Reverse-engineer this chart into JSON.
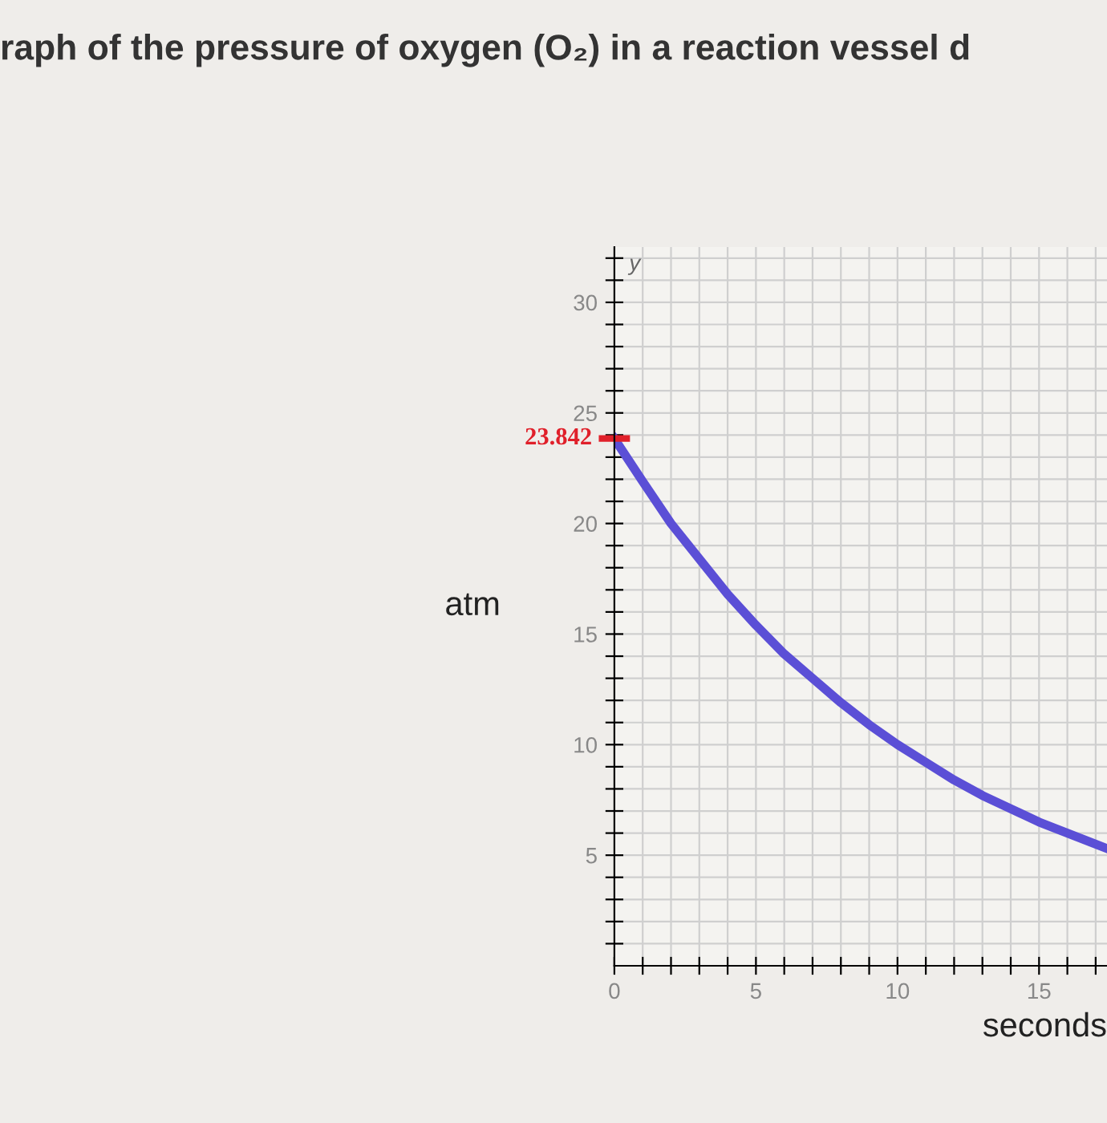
{
  "chart_data": {
    "type": "line",
    "title": "raph of the pressure of oxygen (O₂) in a reaction vessel d",
    "xlabel": "seconds",
    "ylabel": "atm",
    "annotations": [
      "y",
      {
        "text": "23.842",
        "x": 0,
        "y": 23.842
      }
    ],
    "x": [
      0,
      1,
      2,
      3,
      4,
      5,
      6,
      7,
      8,
      9,
      10,
      11,
      12,
      13,
      14,
      15,
      16,
      17,
      17.4
    ],
    "series": [
      {
        "color": "#5b4fd6",
        "values": [
          23.84,
          21.9,
          20.0,
          18.4,
          16.8,
          15.4,
          14.1,
          13.0,
          11.9,
          10.9,
          10.0,
          9.2,
          8.4,
          7.7,
          7.1,
          6.5,
          6.0,
          5.5,
          5.3
        ]
      }
    ],
    "xlim": [
      0,
      17.4
    ],
    "ylim": [
      0,
      32.5
    ],
    "xticks": [
      0,
      {
        "value": 1,
        "label": null
      },
      {
        "value": 2,
        "label": null
      },
      {
        "value": 3,
        "label": null
      },
      {
        "value": 4,
        "label": null
      },
      5,
      {
        "value": 6,
        "label": null
      },
      {
        "value": 7,
        "label": null
      },
      {
        "value": 8,
        "label": null
      },
      {
        "value": 9,
        "label": null
      },
      10,
      {
        "value": 11,
        "label": null
      },
      {
        "value": 12,
        "label": null
      },
      {
        "value": 13,
        "label": null
      },
      {
        "value": 14,
        "label": null
      },
      15,
      {
        "value": 16,
        "label": null
      },
      {
        "value": 17,
        "label": null
      }
    ],
    "yticks": [
      {
        "value": 1,
        "label": null
      },
      {
        "value": 2,
        "label": null
      },
      {
        "value": 3,
        "label": null
      },
      {
        "value": 4,
        "label": null
      },
      5,
      {
        "value": 6,
        "label": null
      },
      {
        "value": 7,
        "label": null
      },
      {
        "value": 8,
        "label": null
      },
      {
        "value": 9,
        "label": null
      },
      10,
      {
        "value": 11,
        "label": null
      },
      {
        "value": 12,
        "label": null
      },
      {
        "value": 13,
        "label": null
      },
      {
        "value": 14,
        "label": null
      },
      15,
      {
        "value": 16,
        "label": null
      },
      {
        "value": 17,
        "label": null
      },
      {
        "value": 18,
        "label": null
      },
      {
        "value": 19,
        "label": null
      },
      20,
      {
        "value": 21,
        "label": null
      },
      {
        "value": 22,
        "label": null
      },
      {
        "value": 23,
        "label": null
      },
      {
        "value": 24,
        "label": null
      },
      25,
      {
        "value": 26,
        "label": null
      },
      {
        "value": 27,
        "label": null
      },
      {
        "value": 28,
        "label": null
      },
      {
        "value": 29,
        "label": null
      },
      30,
      {
        "value": 31,
        "label": null
      },
      {
        "value": 32,
        "label": null
      }
    ],
    "grid": true,
    "line_style": "solid",
    "marker": "none",
    "legend": false
  }
}
